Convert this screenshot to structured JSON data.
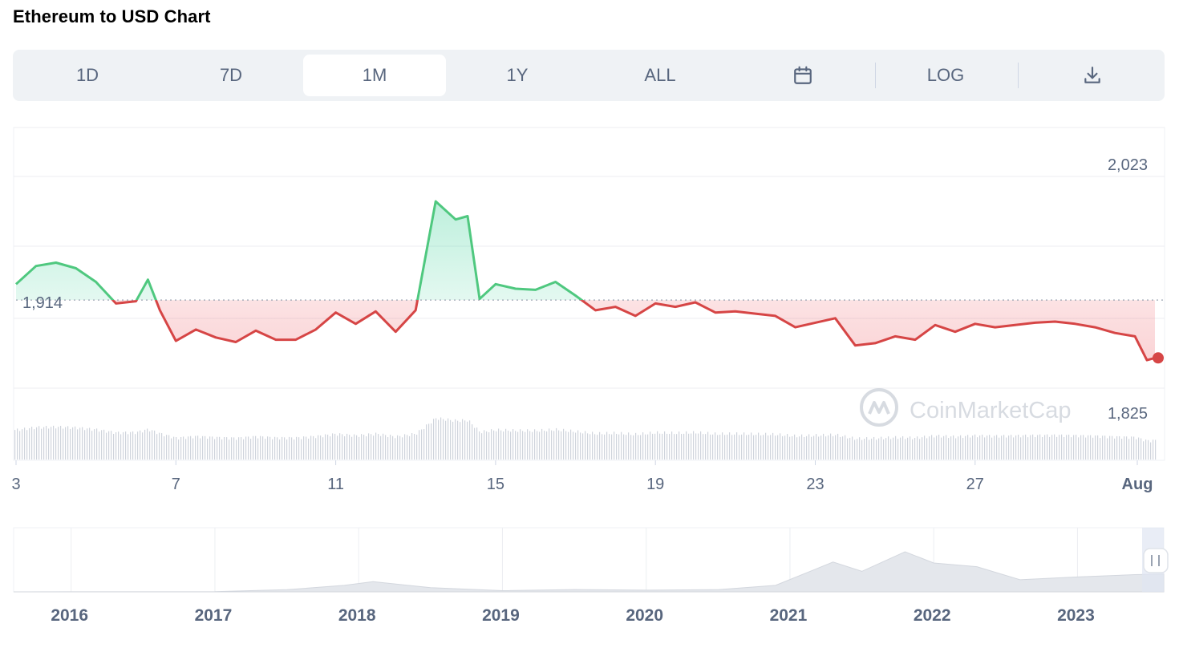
{
  "page": {
    "title": "Ethereum to USD Chart"
  },
  "toolbar": {
    "buttons": [
      {
        "label": "1D"
      },
      {
        "label": "7D"
      },
      {
        "label": "1M",
        "active": true
      },
      {
        "label": "1Y"
      },
      {
        "label": "ALL"
      }
    ],
    "calendar_icon": "calendar-icon",
    "log_label": "LOG",
    "download_icon": "download-icon"
  },
  "colors": {
    "up": "#16c784",
    "up_line": "#4fc87f",
    "down": "#ea3943",
    "down_line": "#d64545",
    "grid": "#eceef2",
    "text": "#58667e",
    "accent": "#eff2f5"
  },
  "watermark": "CoinMarketCap",
  "chart_data": {
    "type": "line",
    "title": "Ethereum to USD Chart",
    "xlabel": "",
    "ylabel": "",
    "ylim": [
      1825,
      2023
    ],
    "reference_price": 1914,
    "y_axis_labels_shown": [
      "2,023",
      "1,914",
      "1,825"
    ],
    "x_tick_labels": [
      "3",
      "7",
      "11",
      "15",
      "19",
      "23",
      "27",
      "Aug"
    ],
    "series": [
      {
        "x": [
          3,
          3.5,
          4,
          4.5,
          5,
          5.5,
          6,
          6.3,
          6.6,
          7,
          7.5,
          8,
          8.5,
          9,
          9.5,
          10,
          10.5,
          11,
          11.5,
          12,
          12.5,
          13,
          13.5,
          14,
          14.3,
          14.6,
          15,
          15.5,
          16,
          16.5,
          17,
          17.5,
          18,
          18.5,
          19,
          19.5,
          20,
          20.5,
          21,
          21.5,
          22,
          22.5,
          23,
          23.5,
          24,
          24.5,
          25,
          25.5,
          26,
          26.5,
          27,
          27.5,
          28,
          28.5,
          29,
          29.5,
          30,
          30.5,
          31,
          31.3,
          31.5
        ],
        "values": [
          1928,
          1944,
          1947,
          1942,
          1930,
          1911,
          1913,
          1932,
          1905,
          1878,
          1888,
          1881,
          1877,
          1887,
          1879,
          1879,
          1888,
          1903,
          1893,
          1904,
          1886,
          1905,
          2001,
          1985,
          1988,
          1915,
          1928,
          1924,
          1923,
          1930,
          1918,
          1905,
          1908,
          1900,
          1911,
          1908,
          1912,
          1903,
          1904,
          1902,
          1900,
          1890,
          1894,
          1898,
          1874,
          1876,
          1882,
          1879,
          1892,
          1886,
          1893,
          1890,
          1892,
          1894,
          1895,
          1893,
          1890,
          1885,
          1882,
          1861,
          1863
        ]
      }
    ],
    "volume_bars": "relative volume shown beneath price line",
    "navigator": {
      "type": "area",
      "x_tick_labels": [
        "2016",
        "2017",
        "2018",
        "2019",
        "2020",
        "2021",
        "2022",
        "2023"
      ],
      "x": [
        2015.6,
        2016,
        2016.5,
        2017,
        2017.5,
        2017.9,
        2018.1,
        2018.5,
        2019,
        2019.5,
        2020,
        2020.5,
        2020.9,
        2021.3,
        2021.5,
        2021.8,
        2022,
        2022.3,
        2022.6,
        2023,
        2023.4,
        2023.6
      ],
      "values": [
        1,
        8,
        12,
        20,
        230,
        700,
        1100,
        450,
        130,
        250,
        180,
        240,
        700,
        3200,
        2200,
        4300,
        3100,
        2700,
        1300,
        1600,
        1850,
        1914
      ]
    }
  }
}
